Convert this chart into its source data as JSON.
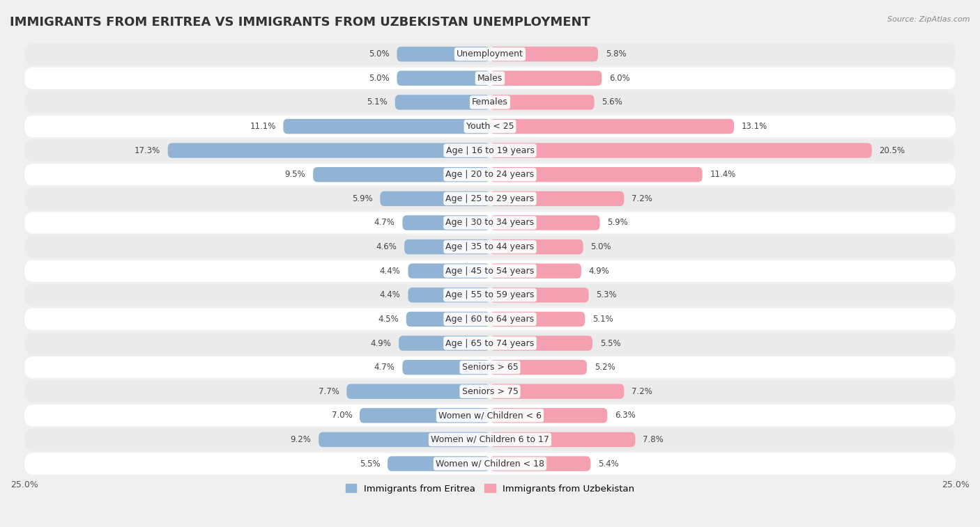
{
  "title": "IMMIGRANTS FROM ERITREA VS IMMIGRANTS FROM UZBEKISTAN UNEMPLOYMENT",
  "source": "Source: ZipAtlas.com",
  "categories": [
    "Unemployment",
    "Males",
    "Females",
    "Youth < 25",
    "Age | 16 to 19 years",
    "Age | 20 to 24 years",
    "Age | 25 to 29 years",
    "Age | 30 to 34 years",
    "Age | 35 to 44 years",
    "Age | 45 to 54 years",
    "Age | 55 to 59 years",
    "Age | 60 to 64 years",
    "Age | 65 to 74 years",
    "Seniors > 65",
    "Seniors > 75",
    "Women w/ Children < 6",
    "Women w/ Children 6 to 17",
    "Women w/ Children < 18"
  ],
  "eritrea_values": [
    5.0,
    5.0,
    5.1,
    11.1,
    17.3,
    9.5,
    5.9,
    4.7,
    4.6,
    4.4,
    4.4,
    4.5,
    4.9,
    4.7,
    7.7,
    7.0,
    9.2,
    5.5
  ],
  "uzbekistan_values": [
    5.8,
    6.0,
    5.6,
    13.1,
    20.5,
    11.4,
    7.2,
    5.9,
    5.0,
    4.9,
    5.3,
    5.1,
    5.5,
    5.2,
    7.2,
    6.3,
    7.8,
    5.4
  ],
  "eritrea_color": "#92b4d4",
  "uzbekistan_color": "#f4a0b0",
  "background_color": "#f0f0f0",
  "axis_max": 25.0,
  "legend_eritrea": "Immigrants from Eritrea",
  "legend_uzbekistan": "Immigrants from Uzbekistan",
  "title_fontsize": 13,
  "label_fontsize": 9,
  "value_fontsize": 8.5
}
